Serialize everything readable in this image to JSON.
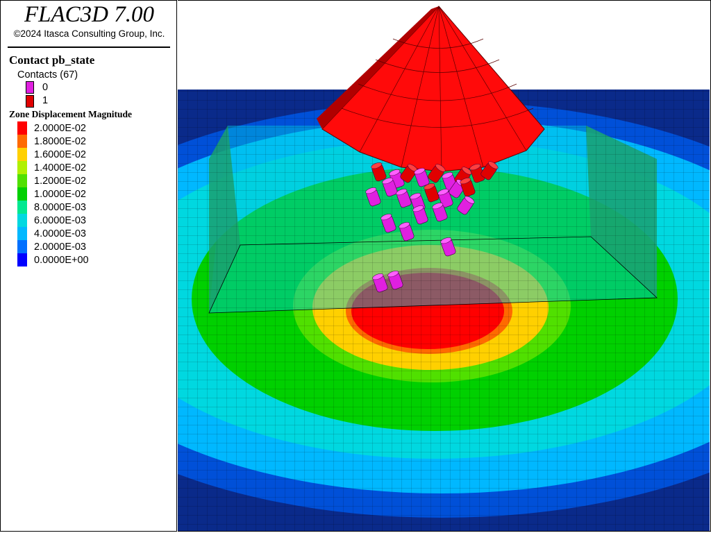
{
  "app": {
    "title": "FLAC3D 7.00",
    "copyright": "©2024 Itasca Consulting Group, Inc."
  },
  "contact_legend": {
    "title": "Contact pb_state",
    "count_label": "Contacts (67)",
    "states": [
      {
        "value": "0",
        "color": "#e020e0"
      },
      {
        "value": "1",
        "color": "#e00000"
      }
    ]
  },
  "zone_legend": {
    "title": "Zone Displacement Magnitude",
    "levels": [
      {
        "label": "2.0000E-02",
        "color": "#ff0000"
      },
      {
        "label": "1.8000E-02",
        "color": "#ff6a00"
      },
      {
        "label": "1.6000E-02",
        "color": "#ffd000"
      },
      {
        "label": "1.4000E-02",
        "color": "#b0f000"
      },
      {
        "label": "1.2000E-02",
        "color": "#50e000"
      },
      {
        "label": "1.0000E-02",
        "color": "#00d000"
      },
      {
        "label": "8.0000E-03",
        "color": "#00e890"
      },
      {
        "label": "6.0000E-03",
        "color": "#00d8e0"
      },
      {
        "label": "4.0000E-03",
        "color": "#00b8ff"
      },
      {
        "label": "2.0000E-03",
        "color": "#0070ff"
      },
      {
        "label": "0.0000E+00",
        "color": "#0000ff"
      }
    ]
  },
  "model": {
    "cone_color": "#ff0a0a",
    "cone_dark": "#b00000",
    "background_band_color": "#0a2a8a"
  }
}
